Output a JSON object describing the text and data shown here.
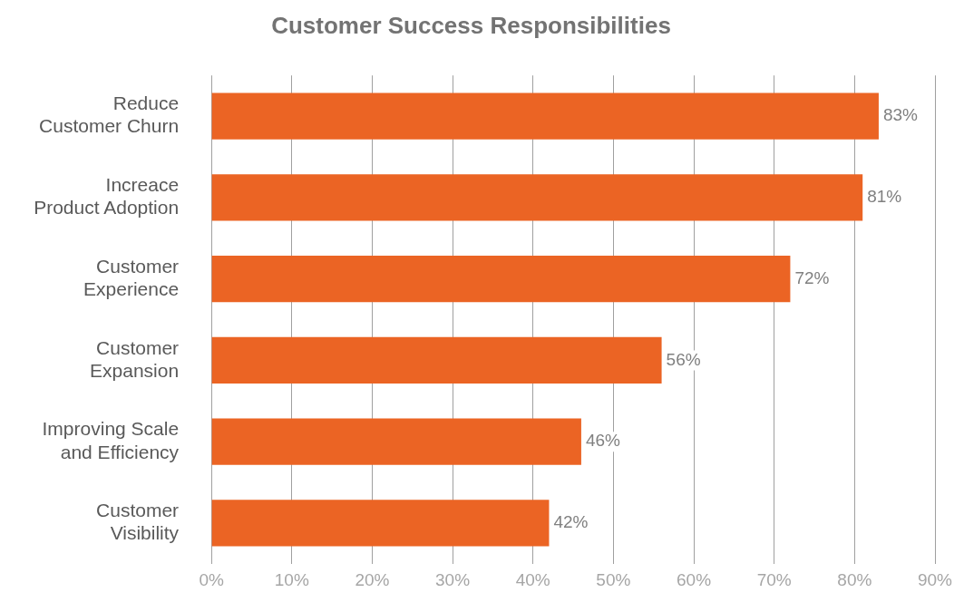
{
  "chart_data": {
    "type": "bar",
    "orientation": "horizontal",
    "title": "Customer Success Responsibilities",
    "categories": [
      "Reduce Customer Churn",
      "Increace Product Adoption",
      "Customer Experience",
      "Customer Expansion",
      "Improving Scale and Efficiency",
      "Customer Visibility"
    ],
    "values": [
      83,
      81,
      72,
      56,
      46,
      42
    ],
    "value_labels": [
      "83%",
      "81%",
      "72%",
      "56%",
      "46%",
      "42%"
    ],
    "color": "#eb6424",
    "xlim": [
      0,
      90
    ],
    "xticks": [
      {
        "value": 0,
        "label": "0%"
      },
      {
        "value": 10,
        "label": "10%"
      },
      {
        "value": 20,
        "label": "20%"
      },
      {
        "value": 30,
        "label": "30%"
      },
      {
        "value": 40,
        "label": "40%"
      },
      {
        "value": 50,
        "label": "50%"
      },
      {
        "value": 60,
        "label": "60%"
      },
      {
        "value": 70,
        "label": "70%"
      },
      {
        "value": 80,
        "label": "80%"
      },
      {
        "value": 90,
        "label": "90%"
      }
    ],
    "grid": "x",
    "legend": false
  }
}
